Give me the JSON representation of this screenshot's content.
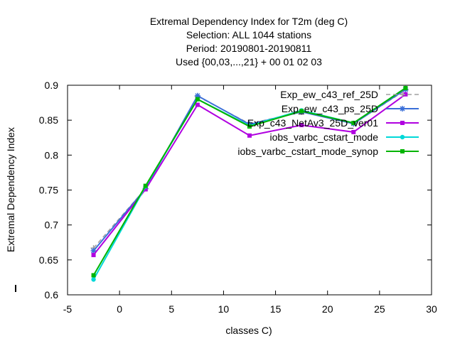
{
  "chart_data": {
    "type": "line",
    "title_lines": [
      "Extremal Dependency Index  for T2m (deg C)",
      "Selection: ALL    1044 stations",
      "Period: 20190801-20190811",
      "Used {00,03,...,21} + 00 01 02 03"
    ],
    "xlabel": "classes C)",
    "ylabel": "Extremal Dependency Index",
    "xlim": [
      -5,
      30
    ],
    "ylim": [
      0.6,
      0.9
    ],
    "xticks": [
      -5,
      0,
      5,
      10,
      15,
      20,
      25,
      30
    ],
    "yticks": [
      0.6,
      0.65,
      0.7,
      0.75,
      0.8,
      0.85,
      0.9
    ],
    "x": [
      -2.5,
      2.5,
      7.5,
      12.5,
      17.5,
      22.5,
      27.5
    ],
    "grid": false,
    "legend_position": "top-right",
    "series": [
      {
        "name": "Exp_ew_c43_ref_25D",
        "color": "#a0a0a0",
        "dashed": true,
        "marker": "plus",
        "values": [
          0.667,
          0.752,
          0.884,
          0.845,
          0.862,
          0.845,
          0.893
        ]
      },
      {
        "name": "Exp_ew_c43_ps_25D",
        "color": "#3a6fd8",
        "dashed": false,
        "marker": "star",
        "values": [
          0.663,
          0.752,
          0.885,
          0.844,
          0.862,
          0.845,
          0.894
        ]
      },
      {
        "name": "Exp_c43_NetAv3_25D_ver01",
        "color": "#b000e0",
        "dashed": false,
        "marker": "square",
        "values": [
          0.657,
          0.751,
          0.872,
          0.828,
          0.843,
          0.833,
          0.887
        ]
      },
      {
        "name": "iobs_varbc_cstart_mode",
        "color": "#00d8d8",
        "dashed": false,
        "marker": "circle",
        "values": [
          0.622,
          0.755,
          0.88,
          0.842,
          0.864,
          0.846,
          0.896
        ]
      },
      {
        "name": "iobs_varbc_cstart_mode_synop",
        "color": "#00b400",
        "dashed": false,
        "marker": "square",
        "values": [
          0.628,
          0.756,
          0.88,
          0.841,
          0.863,
          0.846,
          0.896
        ]
      }
    ]
  }
}
